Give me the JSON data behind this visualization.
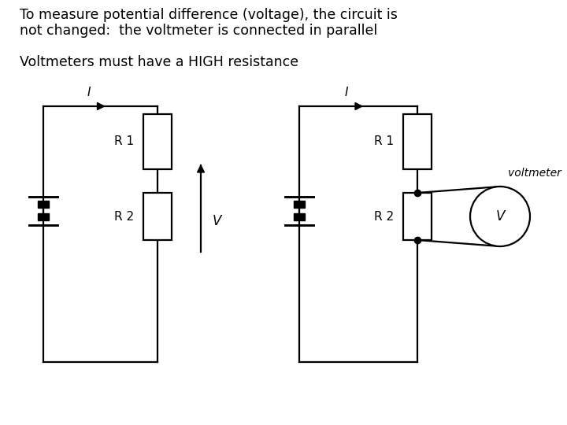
{
  "title_line1": "To measure potential difference (voltage), the circuit is",
  "title_line2": "not changed:  the voltmeter is connected in parallel",
  "subtitle": "Voltmeters must have a HIGH resistance",
  "bg_color": "#ffffff",
  "line_color": "#000000",
  "font_family": "sans-serif",
  "title_fontsize": 12.5,
  "subtitle_fontsize": 12.5,
  "label_fontsize": 11
}
